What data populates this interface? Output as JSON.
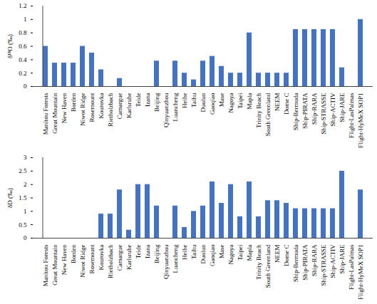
{
  "chart_data": [
    {
      "type": "bar",
      "y_label": "δ¹⁸O (‰)",
      "categories": [
        "Manitou Forests",
        "Great Mountain",
        "New Haven",
        "Borden",
        "Niwot Ridge",
        "Rosemount",
        "Kourovka",
        "Rietholzbach",
        "Camargue",
        "Karlsruhe",
        "Teide",
        "Izana",
        "Beijing",
        "Qinyuanzhou",
        "Luancheng",
        "Heihe",
        "Taihu",
        "Duolun",
        "Gaoqiao",
        "Mase",
        "Nagoya",
        "Taipei",
        "Mapla",
        "Trinity Beach",
        "South Greenland",
        "NEEM",
        "Dome C",
        "Ship-Bermuda",
        "Ship-PIRATA",
        "Ship-RARA",
        "Ship-STRASSE",
        "Ship-ACTIV",
        "Ship-JARE",
        "Flight-LasPalmas",
        "Flight-HyMeX SOP1"
      ],
      "values": [
        0.6,
        0.35,
        0.35,
        0.35,
        0.6,
        0.5,
        0.25,
        null,
        0.12,
        null,
        null,
        null,
        0.38,
        null,
        0.38,
        0.2,
        0.1,
        0.38,
        0.45,
        0.3,
        0.2,
        0.2,
        0.8,
        0.2,
        0.2,
        0.2,
        0.2,
        0.85,
        0.85,
        0.85,
        0.85,
        0.85,
        0.28,
        null,
        1.0
      ],
      "color": "#4472c4",
      "ylim": [
        0,
        1.2
      ],
      "yticks": [
        0,
        0.2,
        0.4,
        0.6,
        0.8,
        1,
        1.2
      ],
      "grid": false
    },
    {
      "type": "bar",
      "y_label": "δD (‰)",
      "categories": [
        "Manitou Forests",
        "Great Mountain",
        "New Haven",
        "Borden",
        "Niwot Ridge",
        "Rosemount",
        "Kourovka",
        "Rietholzbach",
        "Camargue",
        "Karlsruhe",
        "Teide",
        "Izana",
        "Beijing",
        "Qinyuanzhou",
        "Luancheng",
        "Heihe",
        "Taihu",
        "Duolun",
        "Gaoqiao",
        "Mase",
        "Nagoya",
        "Taipei",
        "Mapla",
        "Trinity Beach",
        "South Greenland",
        "NEEM",
        "Dome C",
        "Ship-Bermuda",
        "Ship-PIRATA",
        "Ship-RARA",
        "Ship-STRASSE",
        "Ship-ACTIV",
        "Ship-JARE",
        "Flight-LasPalmas",
        "Flight-HyMeX SOP1"
      ],
      "values": [
        null,
        null,
        null,
        null,
        null,
        null,
        0.9,
        0.9,
        1.8,
        0.3,
        2.0,
        2.0,
        1.2,
        null,
        1.2,
        0.4,
        1.0,
        1.2,
        2.1,
        1.3,
        2.0,
        0.8,
        2.1,
        0.8,
        1.4,
        1.4,
        1.3,
        1.1,
        1.1,
        1.1,
        1.1,
        1.1,
        2.5,
        null,
        1.8
      ],
      "color": "#4472c4",
      "ylim": [
        0,
        3
      ],
      "yticks": [
        0,
        0.5,
        1,
        1.5,
        2,
        2.5,
        3
      ],
      "grid": false
    }
  ]
}
